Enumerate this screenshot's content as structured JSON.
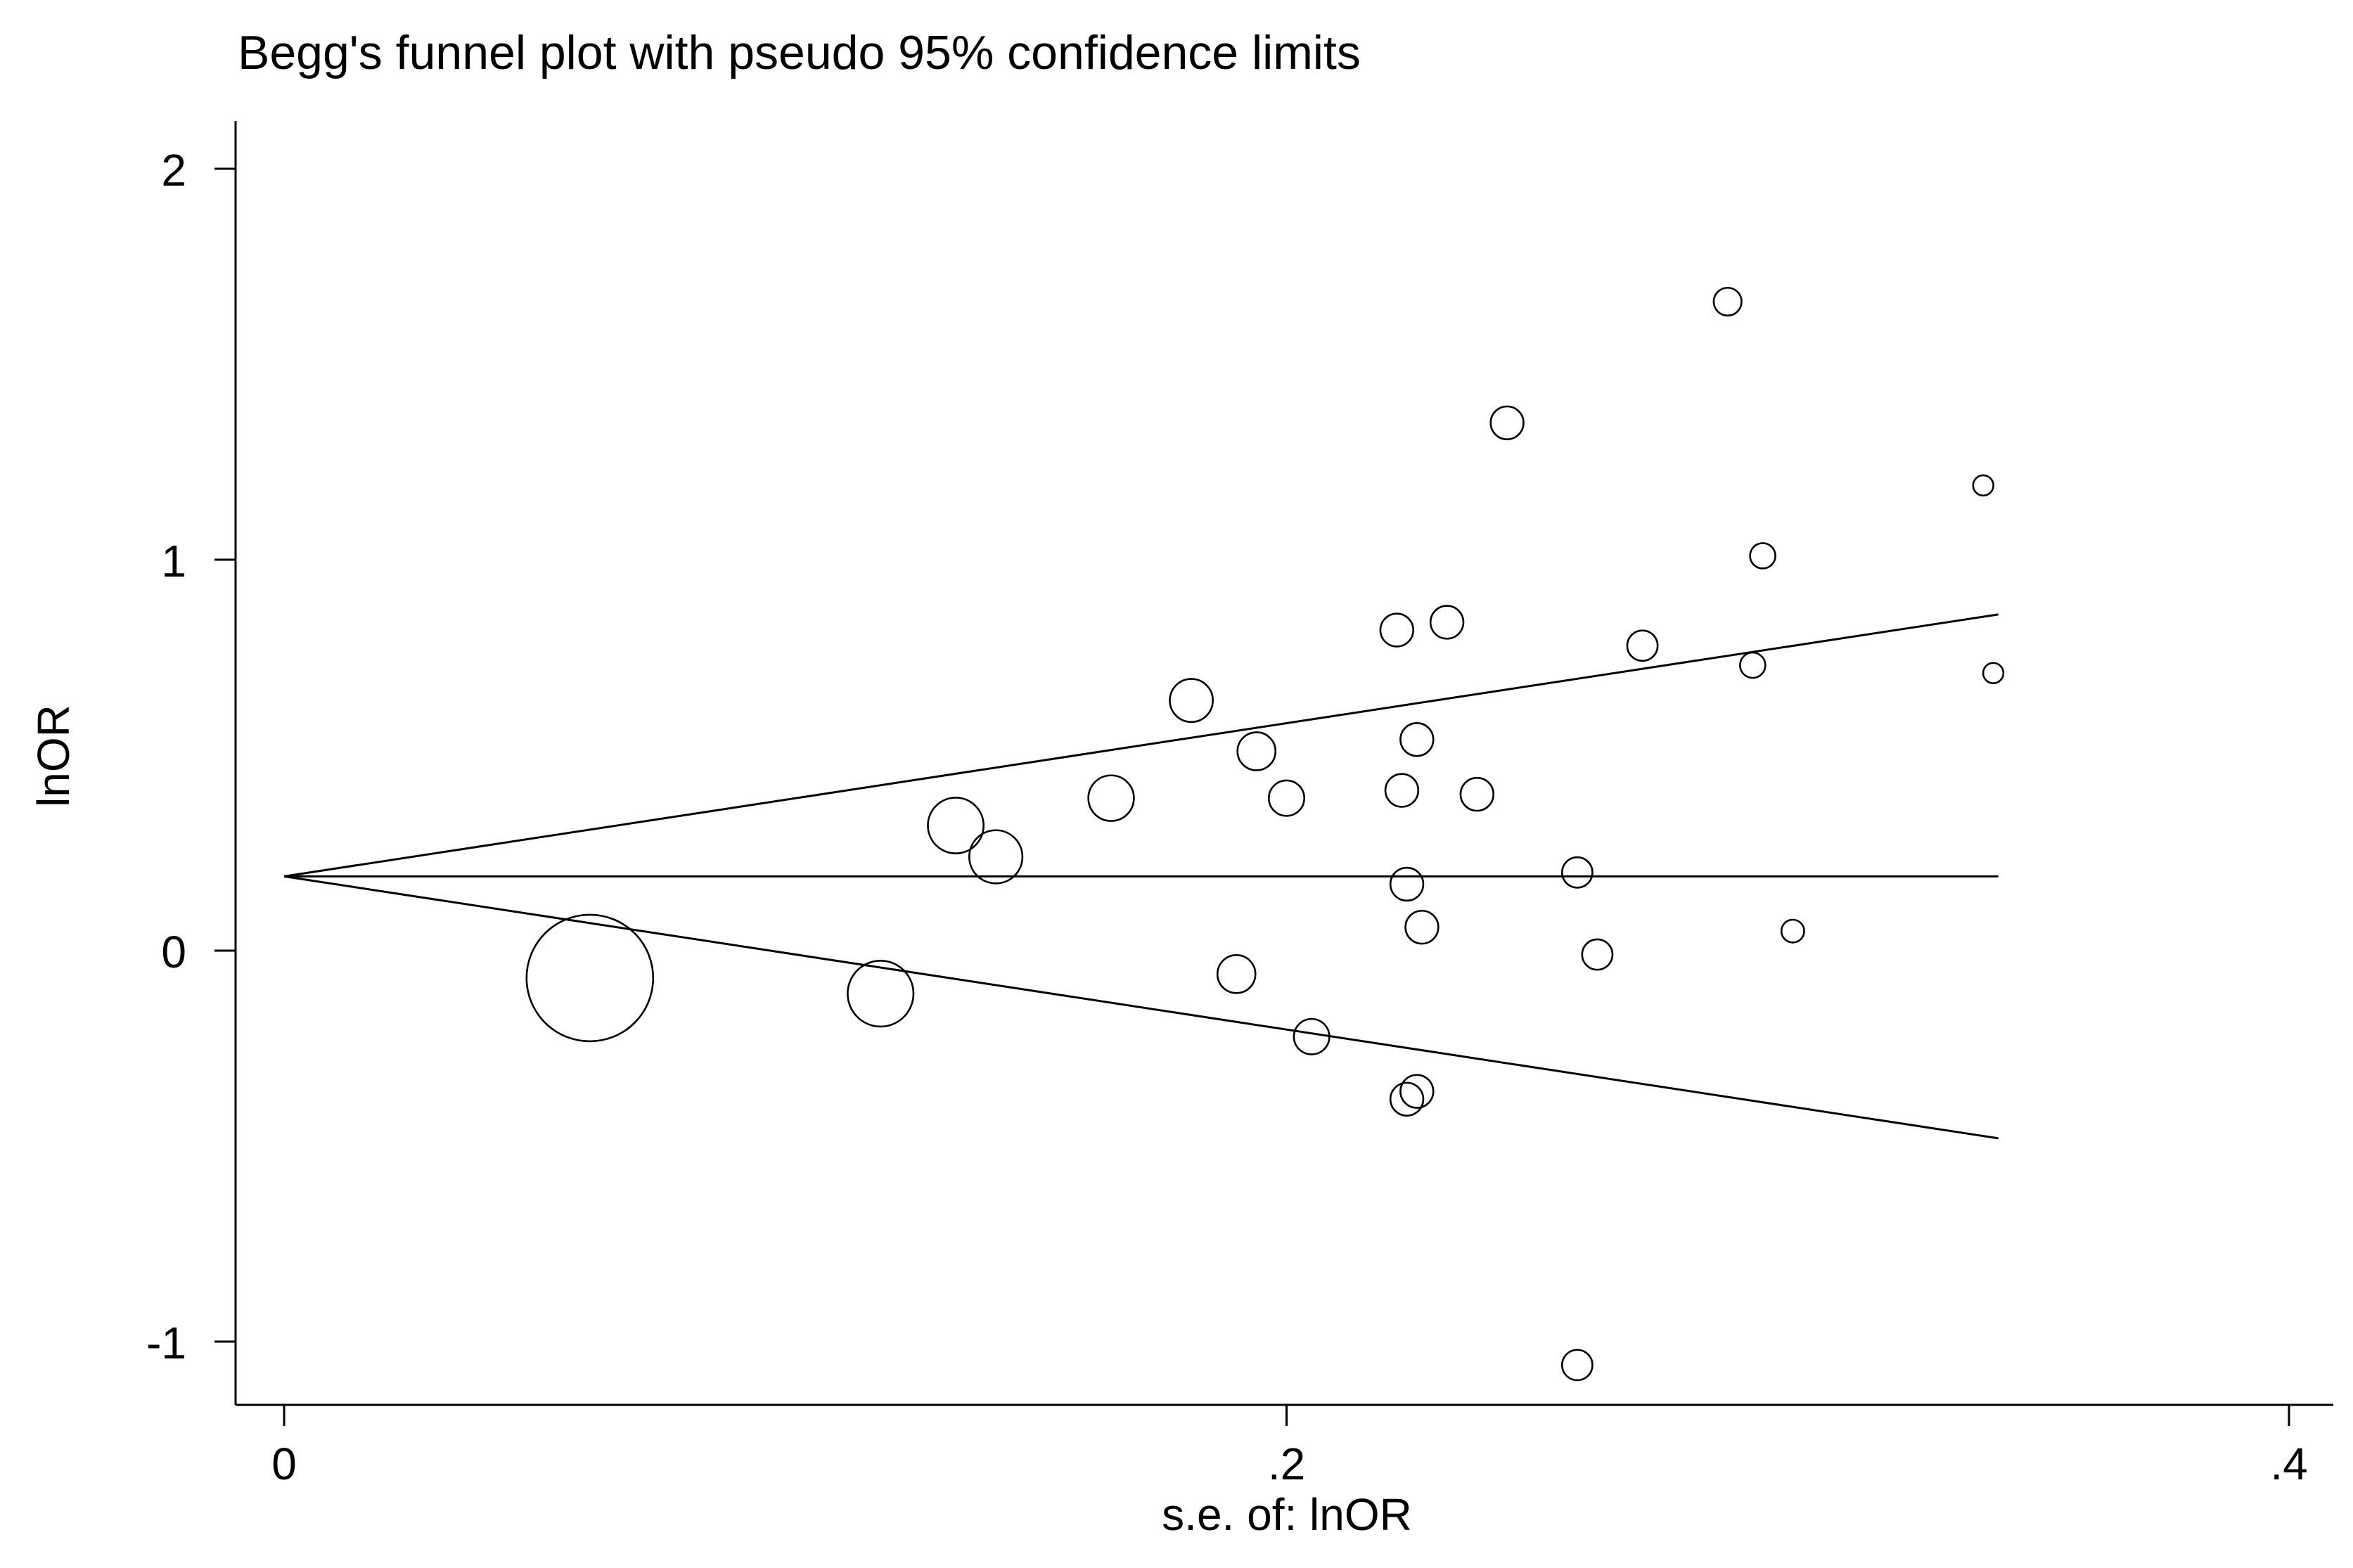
{
  "chart_data": {
    "type": "scatter",
    "title": "Begg's funnel plot with pseudo 95% confidence limits",
    "xlabel": "s.e. of: lnOR",
    "ylabel": "lnOR",
    "xlim": [
      0,
      0.4
    ],
    "ylim": [
      -1,
      2
    ],
    "x_ticks": [
      0,
      0.2,
      0.4
    ],
    "x_tick_labels": [
      "0",
      ".2",
      ".4"
    ],
    "y_ticks": [
      -1,
      0,
      1,
      2
    ],
    "y_tick_labels": [
      "-1",
      "0",
      "1",
      "2"
    ],
    "grid": false,
    "legend": "none",
    "pooled_estimate": 0.19,
    "funnel": {
      "se_max": 0.342,
      "upper_at_max": 0.86,
      "lower_at_max": -0.48
    },
    "points": [
      {
        "se": 0.061,
        "lnor": -0.07,
        "size": 5.0
      },
      {
        "se": 0.119,
        "lnor": -0.11,
        "size": 2.6
      },
      {
        "se": 0.134,
        "lnor": 0.32,
        "size": 2.2
      },
      {
        "se": 0.142,
        "lnor": 0.24,
        "size": 2.1
      },
      {
        "se": 0.165,
        "lnor": 0.39,
        "size": 1.8
      },
      {
        "se": 0.181,
        "lnor": 0.64,
        "size": 1.7
      },
      {
        "se": 0.19,
        "lnor": -0.06,
        "size": 1.5
      },
      {
        "se": 0.194,
        "lnor": 0.51,
        "size": 1.5
      },
      {
        "se": 0.2,
        "lnor": 0.39,
        "size": 1.4
      },
      {
        "se": 0.205,
        "lnor": -0.22,
        "size": 1.4
      },
      {
        "se": 0.222,
        "lnor": 0.82,
        "size": 1.3
      },
      {
        "se": 0.223,
        "lnor": 0.41,
        "size": 1.3
      },
      {
        "se": 0.224,
        "lnor": 0.17,
        "size": 1.3
      },
      {
        "se": 0.224,
        "lnor": -0.38,
        "size": 1.3
      },
      {
        "se": 0.226,
        "lnor": -0.36,
        "size": 1.3
      },
      {
        "se": 0.226,
        "lnor": 0.54,
        "size": 1.3
      },
      {
        "se": 0.227,
        "lnor": 0.06,
        "size": 1.3
      },
      {
        "se": 0.232,
        "lnor": 0.84,
        "size": 1.3
      },
      {
        "se": 0.238,
        "lnor": 0.4,
        "size": 1.3
      },
      {
        "se": 0.244,
        "lnor": 1.35,
        "size": 1.3
      },
      {
        "se": 0.258,
        "lnor": -1.06,
        "size": 1.2
      },
      {
        "se": 0.258,
        "lnor": 0.2,
        "size": 1.2
      },
      {
        "se": 0.262,
        "lnor": -0.01,
        "size": 1.2
      },
      {
        "se": 0.271,
        "lnor": 0.78,
        "size": 1.2
      },
      {
        "se": 0.288,
        "lnor": 1.66,
        "size": 1.1
      },
      {
        "se": 0.293,
        "lnor": 0.73,
        "size": 1.0
      },
      {
        "se": 0.295,
        "lnor": 1.01,
        "size": 1.0
      },
      {
        "se": 0.301,
        "lnor": 0.05,
        "size": 0.9
      },
      {
        "se": 0.339,
        "lnor": 1.19,
        "size": 0.8
      },
      {
        "se": 0.341,
        "lnor": 0.71,
        "size": 0.8
      }
    ]
  }
}
